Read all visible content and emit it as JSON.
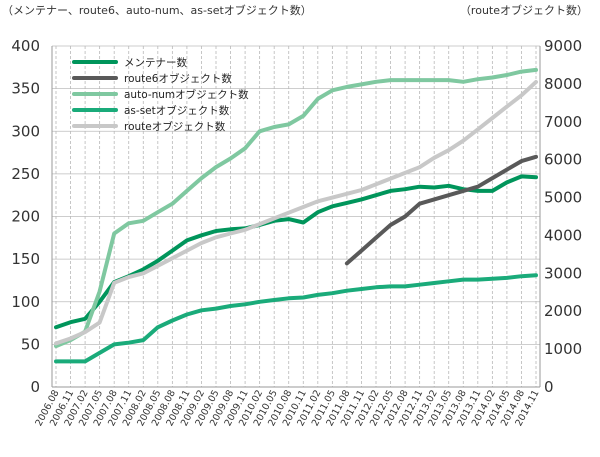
{
  "chart_data": {
    "type": "line",
    "left_axis_label": "（メンテナー、route6、auto-num、as-setオブジェクト数）",
    "right_axis_label": "（routeオブジェクト数）",
    "left_ylim": [
      0,
      400
    ],
    "left_ticks": [
      0,
      50,
      100,
      150,
      200,
      250,
      300,
      350,
      400
    ],
    "right_ylim": [
      0,
      9000
    ],
    "right_ticks": [
      0,
      1000,
      2000,
      3000,
      4000,
      5000,
      6000,
      7000,
      8000,
      9000
    ],
    "grid": true,
    "legend_position": "top-left",
    "x": [
      "2006.08",
      "2006.11",
      "2007.02",
      "2007.05",
      "2007.08",
      "2007.11",
      "2008.02",
      "2008.05",
      "2008.08",
      "2008.11",
      "2009.02",
      "2009.05",
      "2009.08",
      "2009.11",
      "2010.02",
      "2010.05",
      "2010.08",
      "2010.11",
      "2011.02",
      "2011.05",
      "2011.08",
      "2011.11",
      "2012.02",
      "2012.05",
      "2012.08",
      "2012.11",
      "2013.02",
      "2013.05",
      "2013.08",
      "2013.11",
      "2014.02",
      "2014.05",
      "2014.08",
      "2014.11"
    ],
    "series": [
      {
        "name": "メンテナー数",
        "axis": "left",
        "color": "#00955b",
        "values": [
          70,
          76,
          80,
          100,
          123,
          130,
          138,
          148,
          160,
          172,
          178,
          183,
          185,
          186,
          190,
          195,
          197,
          193,
          205,
          212,
          216,
          220,
          225,
          230,
          232,
          235,
          234,
          236,
          232,
          230,
          230,
          240,
          247,
          246
        ]
      },
      {
        "name": "route6オブジェクト数",
        "axis": "left",
        "color": "#595959",
        "values": [
          null,
          null,
          null,
          null,
          null,
          null,
          null,
          null,
          null,
          null,
          null,
          null,
          null,
          null,
          null,
          null,
          null,
          null,
          null,
          null,
          145,
          160,
          175,
          190,
          200,
          215,
          220,
          225,
          230,
          235,
          245,
          255,
          265,
          270
        ]
      },
      {
        "name": "auto-numオブジェクト数",
        "axis": "left",
        "color": "#7fc8a0",
        "values": [
          48,
          55,
          65,
          112,
          180,
          192,
          195,
          205,
          215,
          230,
          245,
          258,
          268,
          280,
          300,
          305,
          308,
          318,
          338,
          348,
          352,
          355,
          358,
          360,
          360,
          360,
          360,
          360,
          358,
          361,
          363,
          366,
          370,
          372
        ]
      },
      {
        "name": "as-setオブジェクト数",
        "axis": "left",
        "color": "#1aab7a",
        "values": [
          30,
          30,
          30,
          40,
          50,
          52,
          55,
          70,
          78,
          85,
          90,
          92,
          95,
          97,
          100,
          102,
          104,
          105,
          108,
          110,
          113,
          115,
          117,
          118,
          118,
          120,
          122,
          124,
          126,
          126,
          127,
          128,
          130,
          131
        ]
      },
      {
        "name": "routeオブジェクト数",
        "axis": "right",
        "color": "#c8c8c8",
        "values": [
          1150,
          1280,
          1450,
          1700,
          2750,
          2900,
          3000,
          3200,
          3400,
          3600,
          3800,
          3950,
          4050,
          4150,
          4300,
          4450,
          4600,
          4750,
          4900,
          5000,
          5100,
          5200,
          5350,
          5500,
          5650,
          5800,
          6050,
          6250,
          6500,
          6800,
          7100,
          7400,
          7700,
          8050
        ]
      }
    ]
  }
}
